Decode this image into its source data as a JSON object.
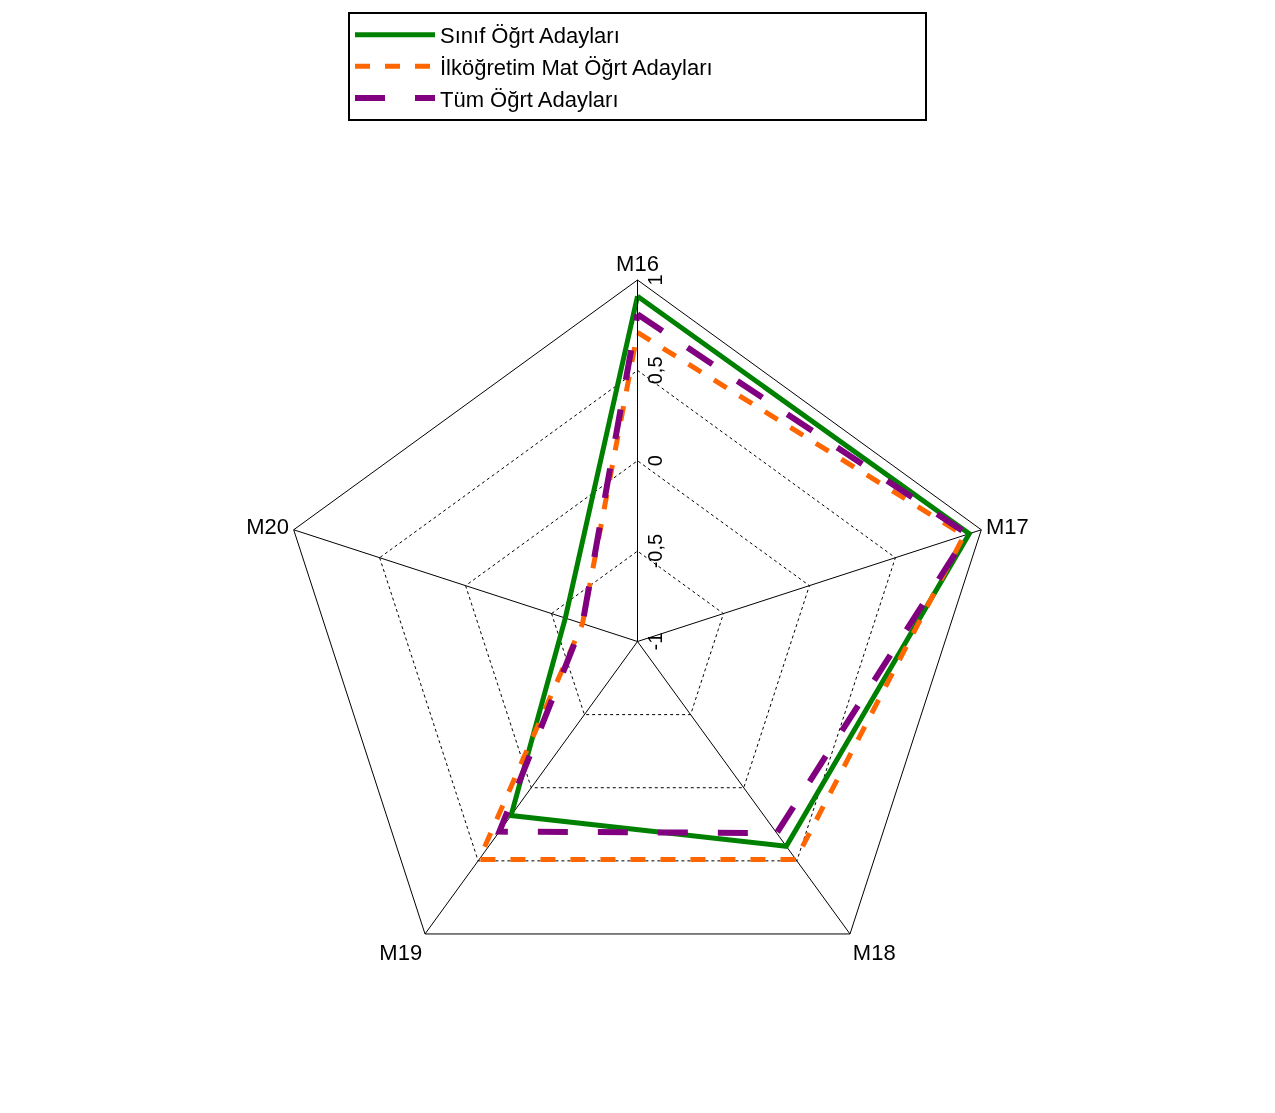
{
  "chart_data": {
    "type": "radar",
    "categories": [
      "M16",
      "M17",
      "M18",
      "M19",
      "M20"
    ],
    "series": [
      {
        "name": "Sınıf Öğrt Adayları",
        "color": "#008000",
        "line_style": "solid",
        "values": [
          0.91,
          0.93,
          0.4,
          0.19,
          -0.58
        ]
      },
      {
        "name": "İlköğretim Mat Öğrt Adayları",
        "color": "#ff6600",
        "line_style": "dotted",
        "values": [
          0.71,
          0.9,
          0.49,
          0.49,
          -0.68
        ]
      },
      {
        "name": "Tüm Öğrt Adayları",
        "color": "#800080",
        "line_style": "dashed",
        "values": [
          0.81,
          0.92,
          0.31,
          0.3,
          -0.68
        ]
      }
    ],
    "ylim": [
      -1,
      1
    ],
    "yticks": [
      {
        "value": -1,
        "label": "-1"
      },
      {
        "value": -0.5,
        "label": "-0,5"
      },
      {
        "value": 0,
        "label": "0"
      },
      {
        "value": 0.5,
        "label": "0,5"
      },
      {
        "value": 1,
        "label": "1"
      }
    ],
    "grid": true,
    "legend": "top",
    "marker": "none"
  }
}
